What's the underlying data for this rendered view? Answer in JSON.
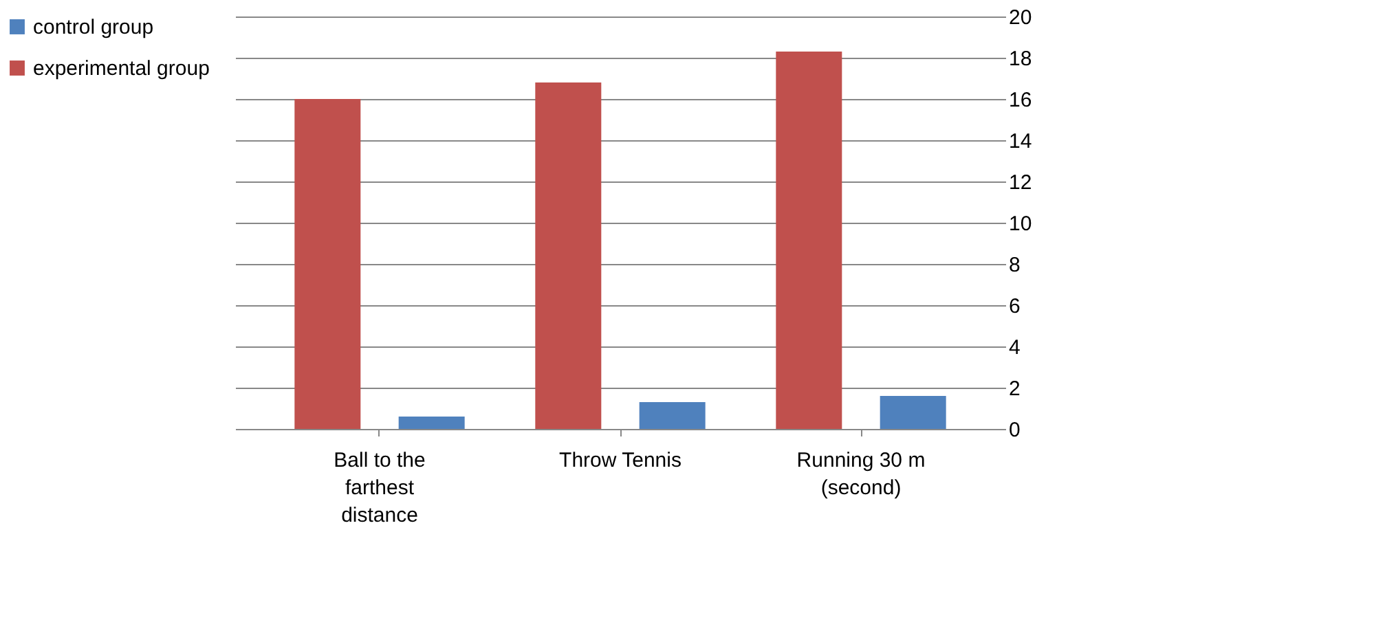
{
  "chart_data": {
    "type": "bar",
    "categories": [
      "Ball to the farthest distance",
      "Throw Tennis",
      "Running 30 m (second)"
    ],
    "series": [
      {
        "name": "control group",
        "color": "#4f81bd",
        "values": [
          0.6,
          1.3,
          1.6
        ]
      },
      {
        "name": "experimental group",
        "color": "#c0504d",
        "values": [
          16,
          16.8,
          18.3
        ]
      }
    ],
    "ylim": [
      0,
      20
    ],
    "yticks": [
      0,
      2,
      4,
      6,
      8,
      10,
      12,
      14,
      16,
      18,
      20
    ],
    "grid": "y",
    "legend": "left"
  }
}
